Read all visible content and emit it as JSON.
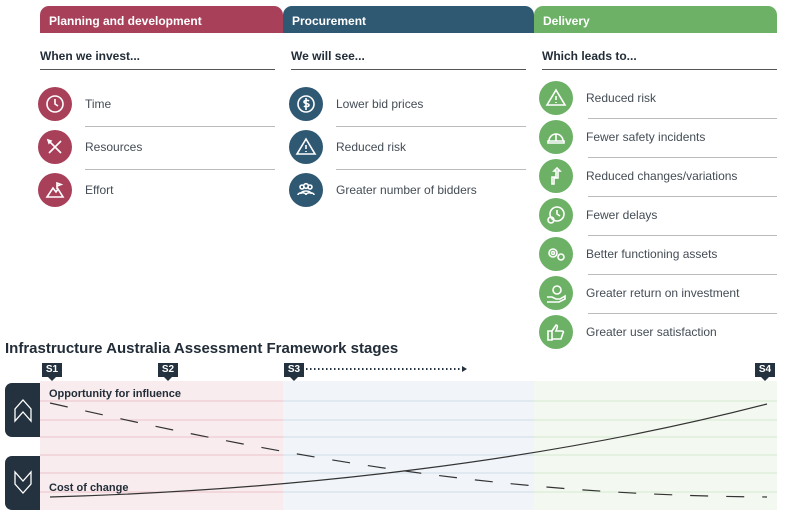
{
  "colors": {
    "planning": "#a8405a",
    "procurement": "#2f5873",
    "delivery": "#6db166",
    "dark": "#24323f"
  },
  "columns": [
    {
      "header": "Planning and development",
      "sub": "When we invest...",
      "items": [
        {
          "label": "Time",
          "icon": "clock-icon"
        },
        {
          "label": "Resources",
          "icon": "tools-icon"
        },
        {
          "label": "Effort",
          "icon": "mountain-flag-icon"
        }
      ]
    },
    {
      "header": "Procurement",
      "sub": "We will see...",
      "items": [
        {
          "label": "Lower bid prices",
          "icon": "dollar-icon"
        },
        {
          "label": "Reduced risk",
          "icon": "warning-icon"
        },
        {
          "label": "Greater number of bidders",
          "icon": "people-icon"
        }
      ]
    },
    {
      "header": "Delivery",
      "sub": "Which leads to...",
      "items": [
        {
          "label": "Reduced risk",
          "icon": "warning-icon"
        },
        {
          "label": "Fewer safety incidents",
          "icon": "hardhat-icon"
        },
        {
          "label": "Reduced changes/variations",
          "icon": "arrows-icon"
        },
        {
          "label": "Fewer delays",
          "icon": "clock-alert-icon"
        },
        {
          "label": "Better functioning assets",
          "icon": "gears-icon"
        },
        {
          "label": "Greater return on investment",
          "icon": "money-hand-icon"
        },
        {
          "label": "Greater user satisfaction",
          "icon": "thumbs-up-icon"
        }
      ]
    }
  ],
  "framework": {
    "title": "Infrastructure Australia Assessment Framework stages",
    "stages": [
      "S1",
      "S2",
      "S3",
      "S4"
    ],
    "opportunity": "Opportunity for influence",
    "cost": "Cost of change"
  }
}
